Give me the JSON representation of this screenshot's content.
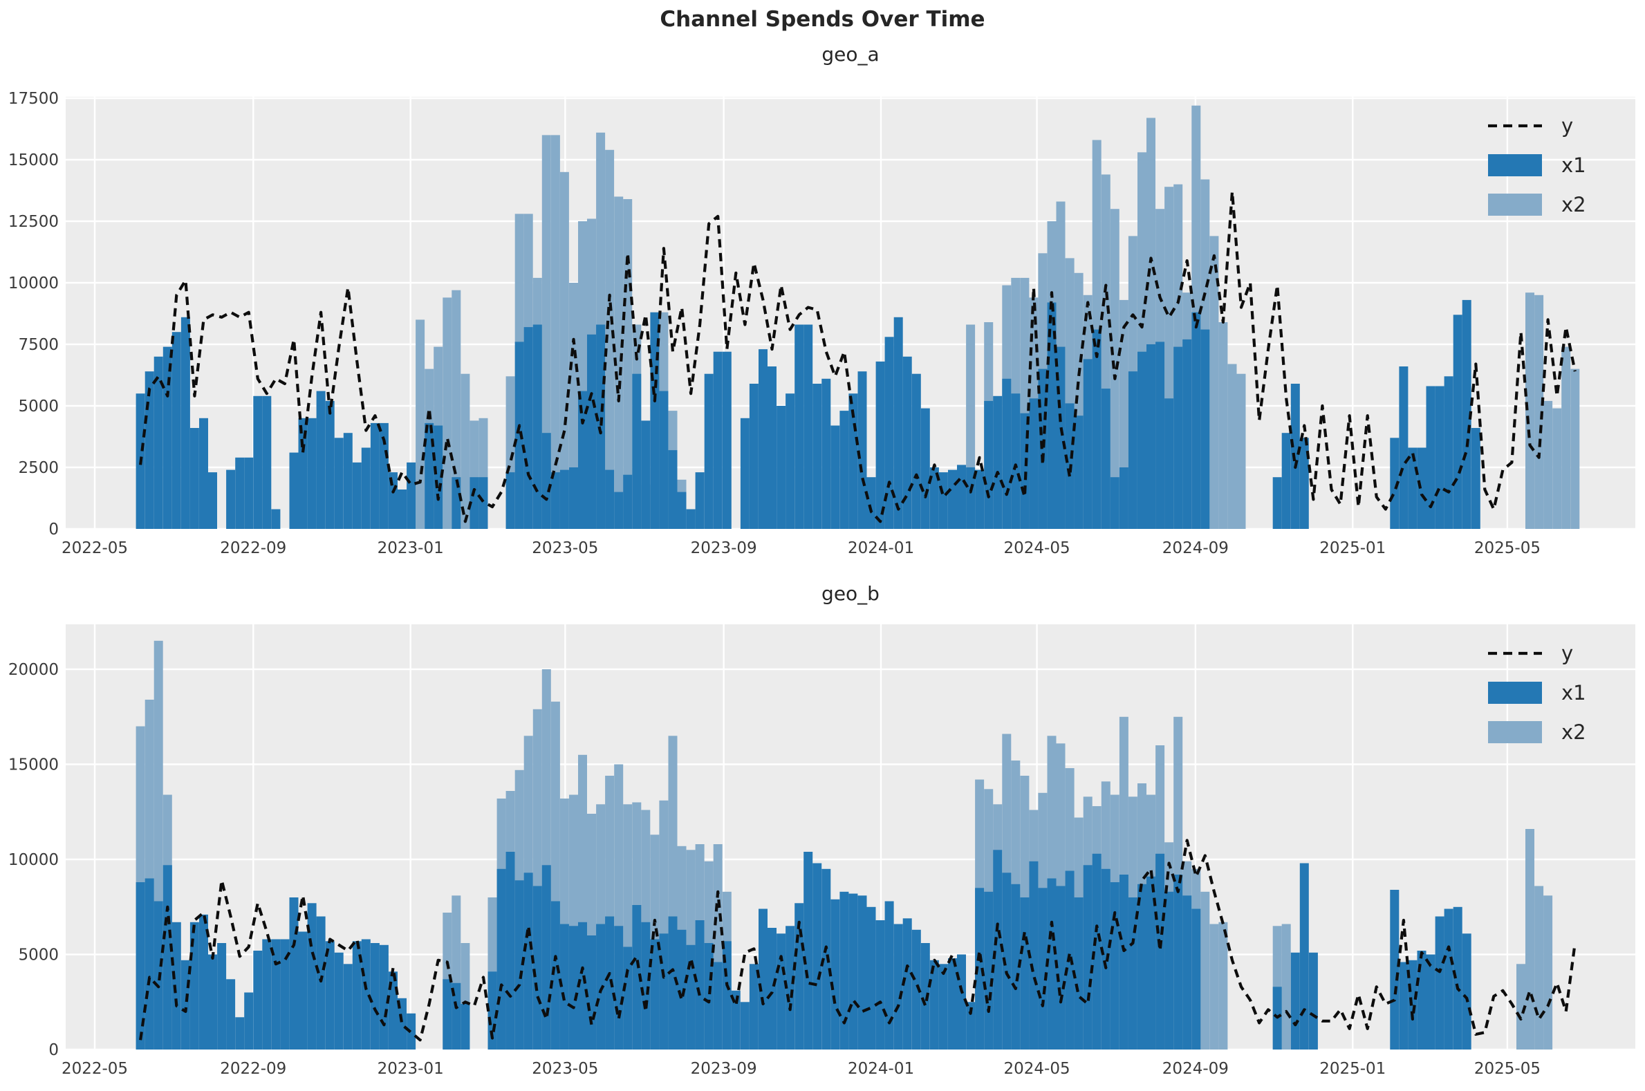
{
  "figure": {
    "title": "Channel Spends Over Time"
  },
  "colors": {
    "x1": "#2478b4",
    "x2": "#85abc9",
    "y_line": "#0d0d0d",
    "plot_bg": "#ececec",
    "grid": "#ffffff",
    "fig_bg": "#ffffff",
    "tick_text": "#3b3b3b"
  },
  "legend": {
    "items": [
      {
        "label": "y",
        "kind": "dashed-line"
      },
      {
        "label": "x1",
        "kind": "swatch",
        "color_key": "x1"
      },
      {
        "label": "x2",
        "kind": "swatch",
        "color_key": "x2"
      }
    ]
  },
  "x_axis": {
    "tick_labels": [
      "2022-05",
      "2022-09",
      "2023-01",
      "2023-05",
      "2023-09",
      "2024-01",
      "2024-05",
      "2024-09",
      "2025-01",
      "2025-05"
    ],
    "tick_day_offsets": [
      0,
      123,
      245,
      365,
      488,
      610,
      731,
      854,
      976,
      1096
    ]
  },
  "chart_data": [
    {
      "type": "bar",
      "subplot_title": "geo_a",
      "x_start": "2022-06-02",
      "freq_days": 7,
      "ylim": [
        0,
        17556
      ],
      "y_ticks": [
        0,
        2500,
        5000,
        7500,
        10000,
        12500,
        15000,
        17500
      ],
      "legend_entries": [
        "y",
        "x1",
        "x2"
      ],
      "grid": true,
      "series": [
        {
          "name": "x2",
          "type": "bar",
          "values": [
            0,
            0,
            0,
            0,
            0,
            0,
            0,
            0,
            0,
            0,
            0,
            0,
            0,
            0,
            0,
            0,
            0,
            0,
            0,
            0,
            0,
            0,
            0,
            0,
            0,
            0,
            0,
            0,
            0,
            0,
            0,
            8500,
            6500,
            7400,
            9400,
            9700,
            6300,
            4400,
            4500,
            0,
            0,
            6200,
            12800,
            12800,
            10200,
            16000,
            16000,
            14500,
            10000,
            12500,
            12600,
            16100,
            15400,
            13500,
            13400,
            8300,
            1800,
            6200,
            8800,
            4800,
            2000,
            0,
            0,
            0,
            0,
            0,
            0,
            0,
            0,
            0,
            0,
            0,
            0,
            0,
            0,
            0,
            0,
            0,
            0,
            0,
            0,
            0,
            0,
            0,
            0,
            0,
            0,
            0,
            0,
            0,
            0,
            0,
            8300,
            0,
            8400,
            0,
            9900,
            10200,
            10200,
            9400,
            11200,
            12500,
            13300,
            11000,
            10400,
            9500,
            15800,
            14400,
            13000,
            9300,
            11900,
            15300,
            16700,
            13000,
            13900,
            14000,
            9600,
            17200,
            14200,
            11900,
            8400,
            6700,
            6300,
            0,
            0,
            0,
            0,
            0,
            0,
            0,
            0,
            0,
            0,
            0,
            0,
            0,
            0,
            0,
            0,
            0,
            0,
            0,
            0,
            0,
            0,
            0,
            0,
            0,
            0,
            0,
            0,
            0,
            0,
            0,
            9600,
            9500,
            5200,
            4900,
            7400,
            6500
          ]
        },
        {
          "name": "x1",
          "type": "bar",
          "values": [
            5500,
            6400,
            7000,
            7400,
            8000,
            8600,
            4100,
            4500,
            2300,
            0,
            2400,
            2900,
            2900,
            5400,
            5400,
            800,
            0,
            3100,
            4500,
            4500,
            5600,
            5200,
            3700,
            3900,
            2700,
            3300,
            4300,
            4300,
            2300,
            1600,
            2700,
            0,
            4300,
            4200,
            0,
            2100,
            0,
            2100,
            2100,
            0,
            0,
            2300,
            7600,
            8200,
            8300,
            3900,
            2300,
            2400,
            2500,
            5600,
            7900,
            8300,
            2400,
            1500,
            2200,
            6300,
            4400,
            8800,
            5600,
            3200,
            1500,
            800,
            2300,
            6300,
            7200,
            7200,
            0,
            4500,
            5900,
            7300,
            6600,
            5000,
            5500,
            8300,
            8300,
            5900,
            6100,
            4200,
            4800,
            5500,
            6400,
            2100,
            6800,
            7800,
            8600,
            7000,
            6300,
            4900,
            2500,
            2300,
            2400,
            2600,
            2500,
            2400,
            5200,
            5400,
            6100,
            5500,
            4700,
            5300,
            6500,
            9200,
            7400,
            5100,
            4600,
            6900,
            8100,
            5700,
            2100,
            2500,
            6400,
            7200,
            7500,
            7600,
            5300,
            7400,
            7700,
            8800,
            8100,
            0,
            0,
            0,
            0,
            0,
            0,
            0,
            2100,
            3900,
            5900,
            3700,
            0,
            0,
            0,
            0,
            0,
            0,
            0,
            0,
            0,
            3700,
            6600,
            3300,
            3300,
            5800,
            5800,
            6200,
            8700,
            9300,
            4100,
            0,
            0,
            0,
            0,
            0,
            0,
            0,
            0,
            0,
            0,
            0
          ]
        },
        {
          "name": "y",
          "type": "line",
          "values": [
            2600,
            5700,
            6200,
            5400,
            9500,
            10100,
            5400,
            8500,
            8700,
            8600,
            8800,
            8600,
            8800,
            6100,
            5500,
            6100,
            5900,
            7700,
            3100,
            6200,
            8800,
            4700,
            7400,
            9800,
            6800,
            4000,
            4600,
            3600,
            1500,
            2300,
            1800,
            1900,
            4900,
            1200,
            3700,
            2100,
            300,
            1600,
            1100,
            900,
            1500,
            2700,
            4200,
            2200,
            1500,
            1200,
            2600,
            4000,
            7700,
            4300,
            5500,
            3900,
            9500,
            5200,
            11200,
            6900,
            8700,
            5200,
            11400,
            7200,
            9000,
            5500,
            8300,
            12400,
            12700,
            7300,
            10400,
            8300,
            10800,
            9300,
            7300,
            9900,
            8100,
            8700,
            9000,
            8900,
            7200,
            6200,
            7200,
            4600,
            2100,
            700,
            300,
            1900,
            800,
            1400,
            2200,
            1300,
            2600,
            1300,
            1700,
            2100,
            1500,
            2900,
            1300,
            2300,
            1400,
            2600,
            1300,
            9800,
            2600,
            9600,
            4200,
            2100,
            6200,
            9200,
            7000,
            9900,
            6100,
            8200,
            8700,
            8200,
            11000,
            9400,
            8600,
            9200,
            10900,
            8200,
            9600,
            11100,
            8400,
            13700,
            9000,
            10000,
            4400,
            7300,
            9900,
            5300,
            2500,
            4200,
            1200,
            5000,
            1600,
            1000,
            4600,
            900,
            4600,
            1300,
            800,
            1500,
            2600,
            3100,
            1400,
            900,
            1700,
            1500,
            2100,
            3200,
            6700,
            1600,
            800,
            2400,
            2700,
            8000,
            3400,
            2900,
            8500,
            5400,
            8200,
            6400
          ]
        }
      ]
    },
    {
      "type": "bar",
      "subplot_title": "geo_b",
      "x_start": "2022-06-02",
      "freq_days": 7,
      "ylim": [
        0,
        22364
      ],
      "y_ticks": [
        0,
        5000,
        10000,
        15000,
        20000
      ],
      "legend_entries": [
        "y",
        "x1",
        "x2"
      ],
      "grid": true,
      "series": [
        {
          "name": "x2",
          "type": "bar",
          "values": [
            17000,
            18400,
            21500,
            13400,
            0,
            0,
            0,
            0,
            0,
            0,
            0,
            0,
            0,
            0,
            0,
            0,
            0,
            0,
            0,
            0,
            0,
            0,
            0,
            0,
            0,
            0,
            0,
            0,
            0,
            0,
            0,
            0,
            0,
            0,
            7200,
            8100,
            5600,
            0,
            0,
            8000,
            13200,
            13600,
            14700,
            16500,
            17900,
            20000,
            18300,
            13200,
            13400,
            15500,
            12400,
            12900,
            14400,
            15000,
            12900,
            13000,
            12600,
            11300,
            13100,
            16500,
            10700,
            10500,
            10800,
            9900,
            10800,
            8300,
            0,
            0,
            0,
            0,
            0,
            0,
            0,
            0,
            0,
            0,
            0,
            0,
            0,
            0,
            0,
            0,
            0,
            0,
            0,
            0,
            0,
            0,
            0,
            0,
            0,
            0,
            0,
            14200,
            13700,
            12900,
            16600,
            15200,
            14400,
            12600,
            13500,
            16500,
            16100,
            14800,
            12200,
            13300,
            12800,
            14100,
            13400,
            17500,
            13300,
            14000,
            13400,
            16000,
            10900,
            17500,
            9900,
            9500,
            8300,
            6600,
            6700,
            0,
            0,
            0,
            0,
            0,
            6500,
            6600,
            0,
            0,
            0,
            0,
            0,
            0,
            0,
            0,
            0,
            0,
            0,
            0,
            0,
            0,
            0,
            0,
            0,
            0,
            0,
            0,
            0,
            0,
            0,
            0,
            0,
            4500,
            11600,
            8600,
            8100,
            0,
            0,
            0
          ]
        },
        {
          "name": "x1",
          "type": "bar",
          "values": [
            8800,
            9000,
            7800,
            9700,
            6700,
            4700,
            6700,
            7100,
            5000,
            5600,
            3700,
            1700,
            3000,
            5200,
            5800,
            5800,
            5800,
            8000,
            6200,
            7700,
            7000,
            5700,
            5100,
            4500,
            5700,
            5800,
            5600,
            5500,
            4100,
            2700,
            1900,
            0,
            0,
            0,
            3700,
            3500,
            2400,
            0,
            0,
            4100,
            9500,
            10400,
            8900,
            9300,
            8600,
            9700,
            7800,
            6600,
            6500,
            6700,
            6000,
            6600,
            7000,
            6500,
            5400,
            7600,
            6700,
            5800,
            6100,
            7000,
            6300,
            5500,
            6800,
            5600,
            4600,
            5700,
            3100,
            2500,
            4500,
            7400,
            6400,
            6100,
            6500,
            7700,
            10400,
            9800,
            9500,
            7900,
            8300,
            8200,
            8100,
            7500,
            6800,
            7800,
            6600,
            6900,
            6300,
            5600,
            4700,
            4500,
            4800,
            5000,
            2500,
            8500,
            8300,
            10500,
            9300,
            8700,
            8000,
            9900,
            8500,
            9000,
            8600,
            9400,
            8000,
            9700,
            10300,
            9500,
            8800,
            9200,
            8000,
            8700,
            9100,
            10300,
            8300,
            9200,
            8100,
            7400,
            0,
            0,
            0,
            0,
            0,
            0,
            0,
            0,
            3300,
            0,
            5100,
            9800,
            5100,
            0,
            0,
            0,
            0,
            0,
            0,
            0,
            0,
            8400,
            4600,
            4700,
            5200,
            5000,
            7000,
            7400,
            7500,
            6100,
            0,
            0,
            0,
            0,
            0,
            0,
            0,
            0,
            0,
            0,
            0,
            0
          ]
        },
        {
          "name": "y",
          "type": "line",
          "values": [
            500,
            3800,
            3300,
            7500,
            2300,
            2000,
            6800,
            7200,
            4800,
            8900,
            7000,
            4900,
            5400,
            7700,
            6200,
            4500,
            4700,
            5500,
            8100,
            5200,
            3600,
            5800,
            5500,
            5200,
            5800,
            3200,
            2100,
            1300,
            4300,
            1300,
            900,
            500,
            2400,
            4700,
            4600,
            2200,
            2500,
            2300,
            3800,
            600,
            3400,
            2800,
            3400,
            6500,
            2800,
            1600,
            4900,
            2500,
            2200,
            4300,
            1300,
            3100,
            4000,
            1600,
            4200,
            4900,
            2000,
            6800,
            3800,
            4200,
            2600,
            4800,
            2800,
            2500,
            8300,
            3400,
            2300,
            5100,
            5300,
            2400,
            3000,
            4900,
            2100,
            6700,
            3500,
            3400,
            5400,
            2300,
            1400,
            2600,
            2000,
            2200,
            2500,
            1400,
            2300,
            4400,
            3500,
            2300,
            4700,
            4000,
            5000,
            3100,
            1900,
            5200,
            2000,
            6600,
            4000,
            3200,
            6200,
            3900,
            2300,
            6700,
            2500,
            5100,
            2800,
            2400,
            6500,
            4300,
            7200,
            5200,
            5600,
            8900,
            9500,
            5200,
            9800,
            8300,
            11000,
            9100,
            10200,
            8300,
            6600,
            4700,
            3300,
            2600,
            1400,
            2100,
            1700,
            2000,
            1300,
            2100,
            1800,
            1500,
            1500,
            2100,
            1100,
            2900,
            1100,
            3300,
            2400,
            2600,
            6800,
            1600,
            5100,
            4400,
            4100,
            5400,
            3200,
            2700,
            800,
            900,
            2800,
            3100,
            2400,
            1600,
            3100,
            1600,
            2300,
            3500,
            2000,
            5600
          ]
        }
      ]
    }
  ],
  "layout_note": "two stacked subplots sharing date x-axis"
}
